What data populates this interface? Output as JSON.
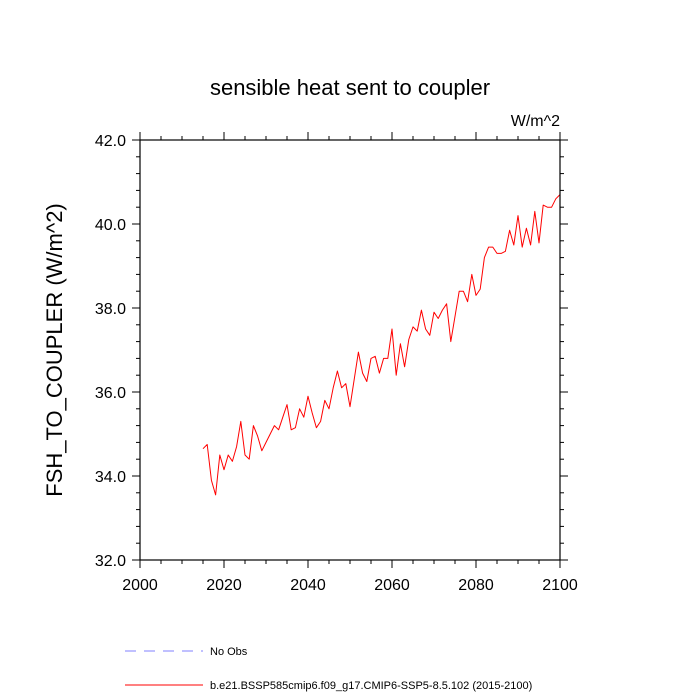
{
  "chart_data": {
    "type": "line",
    "title": "sensible heat sent to coupler",
    "units": "W/m^2",
    "ylabel": "FSH_TO_COUPLER  (W/m^2)",
    "xlabel": "",
    "xlim": [
      2000,
      2100
    ],
    "ylim": [
      32.0,
      42.0
    ],
    "x_ticks": [
      2000,
      2020,
      2040,
      2060,
      2080,
      2100
    ],
    "x_tick_labels": [
      "2000",
      "2020",
      "2040",
      "2060",
      "2080",
      "2100"
    ],
    "y_ticks": [
      32,
      34,
      36,
      38,
      40,
      42
    ],
    "y_tick_labels": [
      "32.0",
      "34.0",
      "36.0",
      "38.0",
      "40.0",
      "42.0"
    ],
    "grid": false,
    "legend_position": "bottom",
    "series": [
      {
        "name": "b.e21.BSSP585cmip6.f09_g17.CMIP6-SSP5-8.5.102 (2015-2100)",
        "color": "#ff0000",
        "dash": "solid",
        "x": [
          2015,
          2016,
          2017,
          2018,
          2019,
          2020,
          2021,
          2022,
          2023,
          2024,
          2025,
          2026,
          2027,
          2028,
          2029,
          2030,
          2031,
          2032,
          2033,
          2034,
          2035,
          2036,
          2037,
          2038,
          2039,
          2040,
          2041,
          2042,
          2043,
          2044,
          2045,
          2046,
          2047,
          2048,
          2049,
          2050,
          2051,
          2052,
          2053,
          2054,
          2055,
          2056,
          2057,
          2058,
          2059,
          2060,
          2061,
          2062,
          2063,
          2064,
          2065,
          2066,
          2067,
          2068,
          2069,
          2070,
          2071,
          2072,
          2073,
          2074,
          2075,
          2076,
          2077,
          2078,
          2079,
          2080,
          2081,
          2082,
          2083,
          2084,
          2085,
          2086,
          2087,
          2088,
          2089,
          2090,
          2091,
          2092,
          2093,
          2094,
          2095,
          2096,
          2097,
          2098,
          2099,
          2100
        ],
        "y": [
          34.65,
          34.75,
          33.9,
          33.55,
          34.5,
          34.15,
          34.5,
          34.35,
          34.7,
          35.3,
          34.5,
          34.4,
          35.2,
          34.95,
          34.6,
          34.8,
          35.0,
          35.2,
          35.1,
          35.4,
          35.7,
          35.1,
          35.15,
          35.6,
          35.4,
          35.9,
          35.5,
          35.15,
          35.3,
          35.8,
          35.6,
          36.1,
          36.5,
          36.1,
          36.2,
          35.65,
          36.3,
          36.95,
          36.45,
          36.25,
          36.8,
          36.85,
          36.45,
          36.8,
          36.8,
          37.5,
          36.4,
          37.15,
          36.6,
          37.25,
          37.55,
          37.45,
          37.95,
          37.5,
          37.35,
          37.9,
          37.75,
          37.95,
          38.1,
          37.2,
          37.8,
          38.4,
          38.4,
          38.15,
          38.8,
          38.3,
          38.45,
          39.2,
          39.45,
          39.45,
          39.3,
          39.3,
          39.35,
          39.85,
          39.5,
          40.2,
          39.45,
          39.9,
          39.5,
          40.3,
          39.55,
          40.45,
          40.4,
          40.4,
          40.6,
          40.7
        ]
      }
    ],
    "reference": {
      "name": "No Obs",
      "color": "#8080ff",
      "dash": "dashed"
    }
  }
}
